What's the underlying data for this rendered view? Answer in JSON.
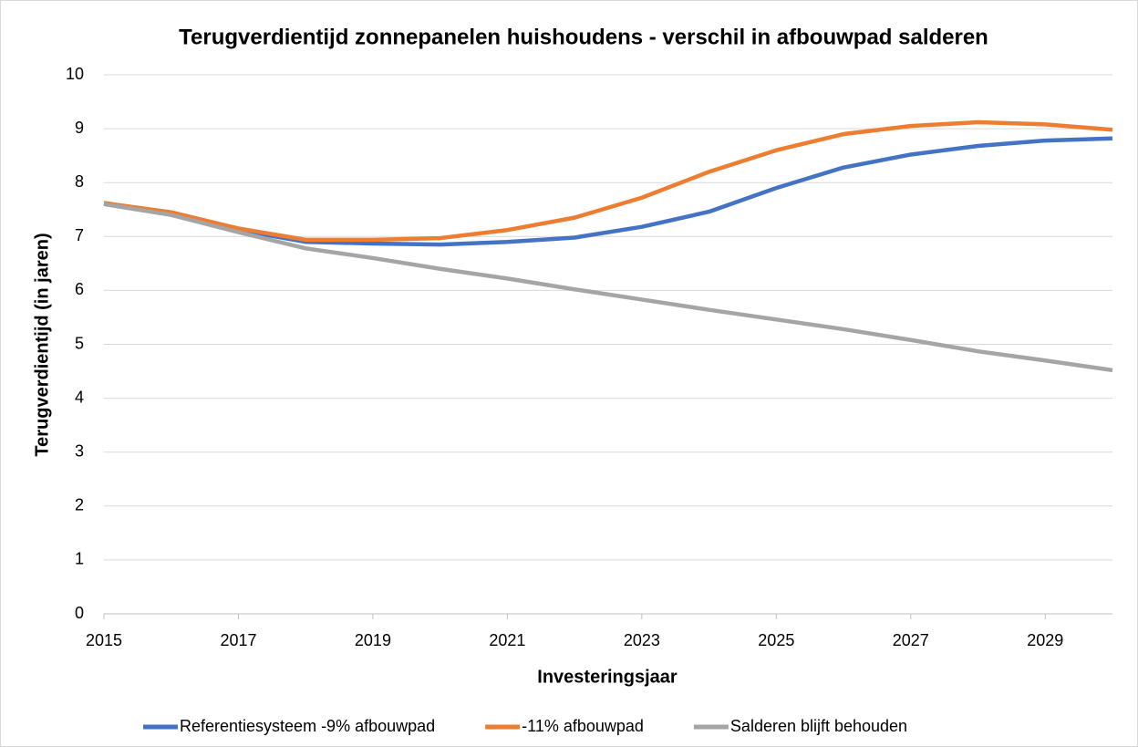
{
  "chart_data": {
    "type": "line",
    "title": "Terugverdientijd zonnepanelen huishoudens - verschil in afbouwpad salderen",
    "x_label": "Investeringsjaar",
    "y_label": "Terugverdientijd (in jaren)",
    "x": [
      2015,
      2016,
      2017,
      2018,
      2019,
      2020,
      2021,
      2022,
      2023,
      2024,
      2025,
      2026,
      2027,
      2028,
      2029,
      2030
    ],
    "series": [
      {
        "name": "Referentiesysteem -9% afbouwpad",
        "color": "#4472c4",
        "values": [
          7.62,
          7.43,
          7.12,
          6.9,
          6.87,
          6.85,
          6.9,
          6.98,
          7.18,
          7.46,
          7.9,
          8.28,
          8.52,
          8.68,
          8.78,
          8.82
        ]
      },
      {
        "name": "-11% afbouwpad",
        "color": "#ed7d31",
        "values": [
          7.62,
          7.45,
          7.15,
          6.94,
          6.94,
          6.97,
          7.12,
          7.35,
          7.72,
          8.2,
          8.6,
          8.9,
          9.05,
          9.12,
          9.08,
          8.98
        ]
      },
      {
        "name": "Salderen blijft behouden",
        "color": "#a5a5a5",
        "values": [
          7.6,
          7.4,
          7.08,
          6.78,
          6.6,
          6.4,
          6.22,
          6.02,
          5.83,
          5.64,
          5.46,
          5.28,
          5.08,
          4.87,
          4.7,
          4.52
        ]
      }
    ],
    "xlim": [
      2015,
      2030
    ],
    "xticks": [
      2015,
      2017,
      2019,
      2021,
      2023,
      2025,
      2027,
      2029
    ],
    "ylim": [
      0,
      10
    ],
    "yticks": [
      0,
      1,
      2,
      3,
      4,
      5,
      6,
      7,
      8,
      9,
      10
    ],
    "grid": true,
    "legend": "bottom"
  }
}
